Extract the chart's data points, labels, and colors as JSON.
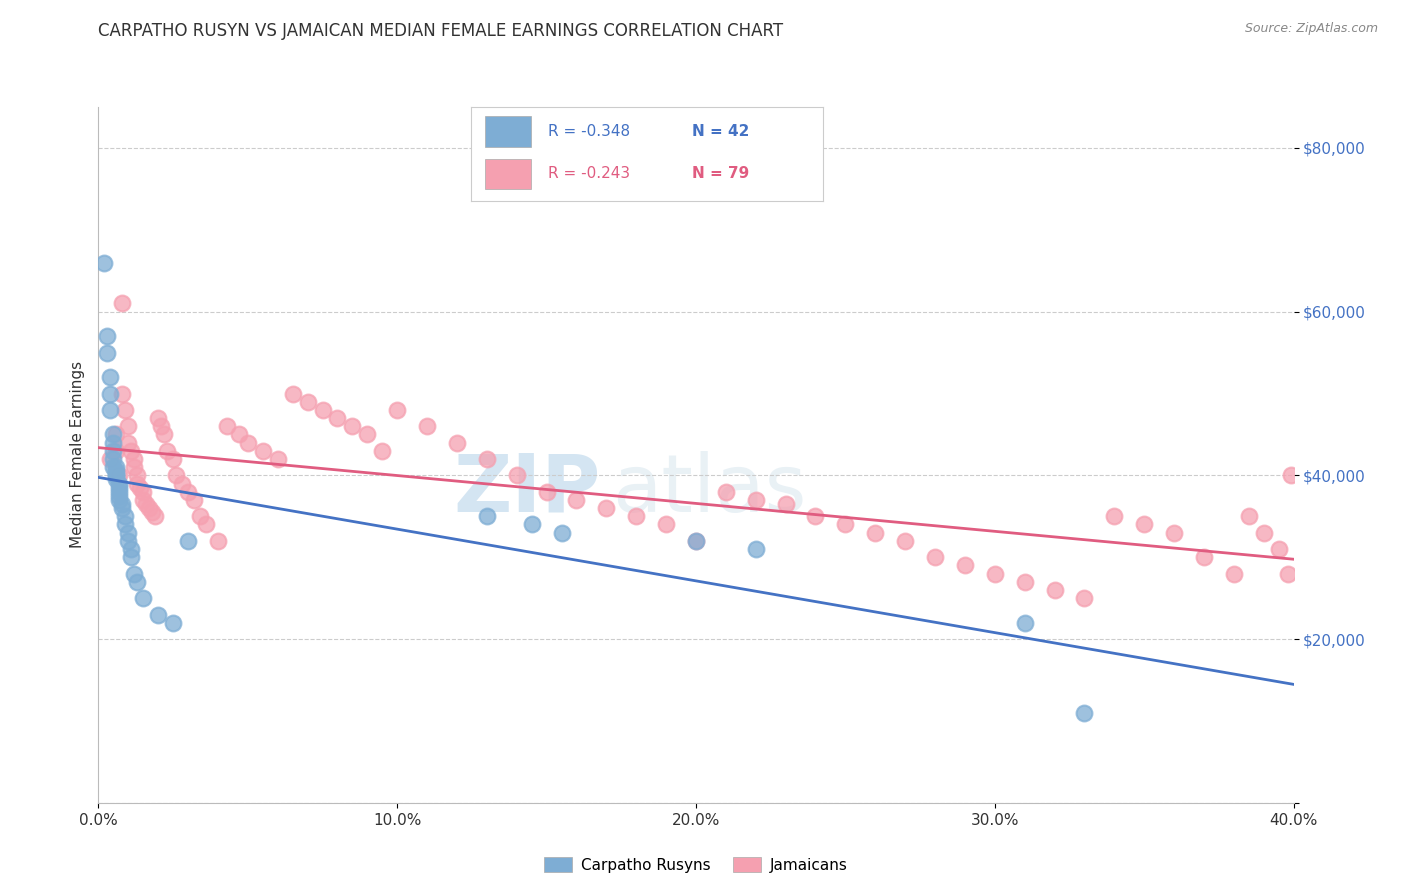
{
  "title": "CARPATHO RUSYN VS JAMAICAN MEDIAN FEMALE EARNINGS CORRELATION CHART",
  "source": "Source: ZipAtlas.com",
  "ylabel": "Median Female Earnings",
  "xlabel_ticks": [
    "0.0%",
    "10.0%",
    "20.0%",
    "30.0%",
    "40.0%"
  ],
  "xlabel_vals": [
    0.0,
    0.1,
    0.2,
    0.3,
    0.4
  ],
  "ylabel_ticks": [
    0,
    20000,
    40000,
    60000,
    80000
  ],
  "ylabel_tick_labels": [
    "",
    "$20,000",
    "$40,000",
    "$60,000",
    "$80,000"
  ],
  "xlim": [
    0.0,
    0.4
  ],
  "ylim": [
    0,
    85000
  ],
  "blue_R": "-0.348",
  "blue_N": "42",
  "pink_R": "-0.243",
  "pink_N": "79",
  "legend_label_blue": "Carpatho Rusyns",
  "legend_label_pink": "Jamaicans",
  "blue_color": "#7eadd4",
  "pink_color": "#f5a0b0",
  "blue_line_color": "#4472c4",
  "pink_line_color": "#e05c80",
  "watermark_zip": "ZIP",
  "watermark_atlas": "atlas",
  "background_color": "#ffffff",
  "grid_color": "#cccccc",
  "blue_x": [
    0.002,
    0.003,
    0.003,
    0.004,
    0.004,
    0.004,
    0.005,
    0.005,
    0.005,
    0.005,
    0.005,
    0.006,
    0.006,
    0.006,
    0.006,
    0.006,
    0.007,
    0.007,
    0.007,
    0.007,
    0.007,
    0.008,
    0.008,
    0.009,
    0.009,
    0.01,
    0.01,
    0.011,
    0.011,
    0.012,
    0.013,
    0.015,
    0.02,
    0.025,
    0.03,
    0.13,
    0.145,
    0.155,
    0.2,
    0.22,
    0.31,
    0.33
  ],
  "blue_y": [
    66000,
    57000,
    55000,
    52000,
    50000,
    48000,
    45000,
    44000,
    43000,
    42000,
    41000,
    41000,
    40500,
    40000,
    40000,
    39500,
    39000,
    38500,
    38000,
    37500,
    37000,
    36500,
    36000,
    35000,
    34000,
    33000,
    32000,
    31000,
    30000,
    28000,
    27000,
    25000,
    23000,
    22000,
    32000,
    35000,
    34000,
    33000,
    32000,
    31000,
    22000,
    11000
  ],
  "pink_x": [
    0.004,
    0.006,
    0.006,
    0.007,
    0.008,
    0.008,
    0.009,
    0.01,
    0.01,
    0.011,
    0.012,
    0.012,
    0.013,
    0.013,
    0.014,
    0.015,
    0.015,
    0.016,
    0.017,
    0.018,
    0.019,
    0.02,
    0.021,
    0.022,
    0.023,
    0.025,
    0.026,
    0.028,
    0.03,
    0.032,
    0.034,
    0.036,
    0.04,
    0.043,
    0.047,
    0.05,
    0.055,
    0.06,
    0.065,
    0.07,
    0.075,
    0.08,
    0.085,
    0.09,
    0.095,
    0.1,
    0.11,
    0.12,
    0.13,
    0.14,
    0.15,
    0.16,
    0.17,
    0.18,
    0.19,
    0.2,
    0.21,
    0.22,
    0.23,
    0.24,
    0.25,
    0.26,
    0.27,
    0.28,
    0.29,
    0.3,
    0.31,
    0.32,
    0.33,
    0.34,
    0.35,
    0.36,
    0.37,
    0.38,
    0.385,
    0.39,
    0.395,
    0.398,
    0.399
  ],
  "pink_y": [
    42000,
    45000,
    43000,
    40000,
    61000,
    50000,
    48000,
    46000,
    44000,
    43000,
    42000,
    41000,
    40000,
    39000,
    38500,
    38000,
    37000,
    36500,
    36000,
    35500,
    35000,
    47000,
    46000,
    45000,
    43000,
    42000,
    40000,
    39000,
    38000,
    37000,
    35000,
    34000,
    32000,
    46000,
    45000,
    44000,
    43000,
    42000,
    50000,
    49000,
    48000,
    47000,
    46000,
    45000,
    43000,
    48000,
    46000,
    44000,
    42000,
    40000,
    38000,
    37000,
    36000,
    35000,
    34000,
    32000,
    38000,
    37000,
    36500,
    35000,
    34000,
    33000,
    32000,
    30000,
    29000,
    28000,
    27000,
    26000,
    25000,
    35000,
    34000,
    33000,
    30000,
    28000,
    35000,
    33000,
    31000,
    28000,
    40000
  ]
}
